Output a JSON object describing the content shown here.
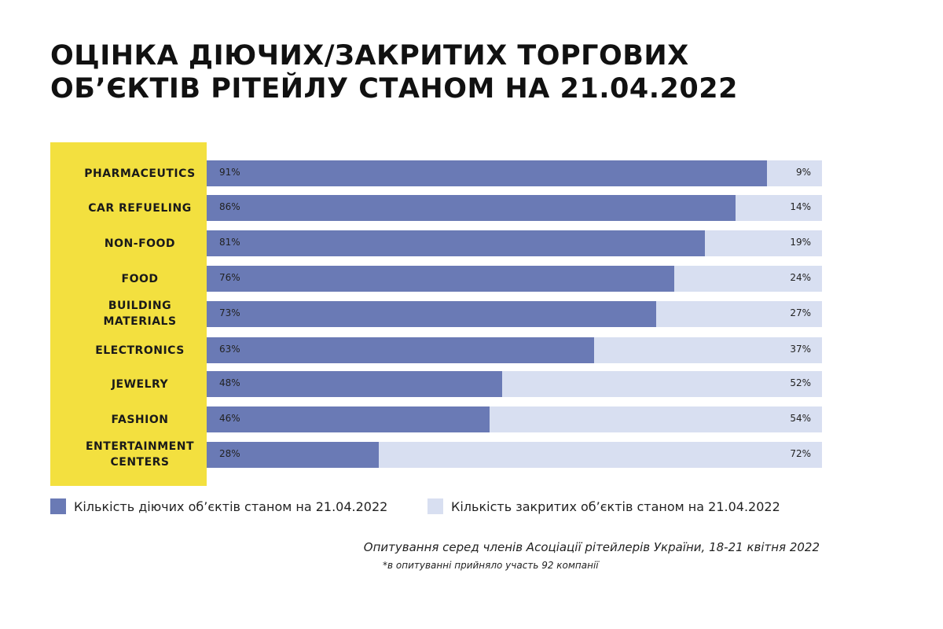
{
  "chart_data": {
    "type": "bar",
    "stacked": true,
    "orientation": "horizontal",
    "title": "ОЦІНКА ДІЮЧИХ/ЗАКРИТИХ ТОРГОВИХ ОБ’ЄКТІВ РІТЕЙЛУ СТАНОМ НА 21.04.2022",
    "title_lines": [
      "ОЦІНКА ДІЮЧИХ/ЗАКРИТИХ ТОРГОВИХ",
      "ОБ’ЄКТІВ РІТЕЙЛУ СТАНОМ НА 21.04.2022"
    ],
    "categories": [
      "PHARMACEUTICS",
      "CAR REFUELING",
      "NON-FOOD",
      "FOOD",
      "BUILDING MATERIALS",
      "ELECTRONICS",
      "JEWELRY",
      "FASHION",
      "ENTERTAINMENT CENTERS"
    ],
    "series": [
      {
        "name": "Кількість діючих об’єктів станом на 21.04.2022",
        "color": "#6a7ab5",
        "values": [
          91,
          86,
          81,
          76,
          73,
          63,
          48,
          46,
          28
        ]
      },
      {
        "name": "Кількість закритих об’єктів станом на 21.04.2022",
        "color": "#d8dff1",
        "values": [
          9,
          14,
          19,
          24,
          27,
          37,
          52,
          54,
          72
        ]
      }
    ],
    "unit": "%",
    "xlim": [
      0,
      100
    ],
    "legend": "bottom"
  },
  "notes": {
    "source": "Опитування серед членів Асоціації рітейлерів України, 18-21 квітня 2022",
    "footnote": "*в опитуванні прийняло участь 92 компанії"
  }
}
